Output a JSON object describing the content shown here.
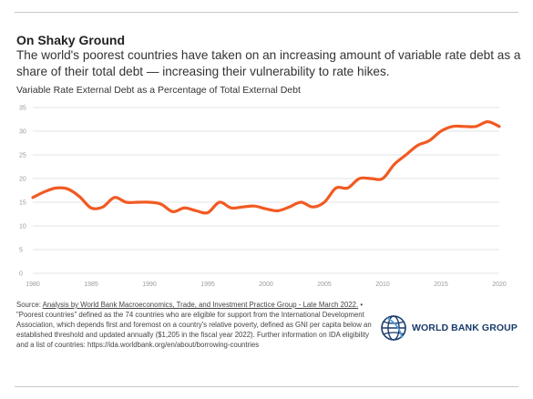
{
  "header": {
    "title": "On Shaky Ground",
    "subtitle": "The world's poorest countries have taken on an increasing amount of variable rate debt as a share of their total debt — increasing their vulnerability to rate hikes.",
    "chart_label": "Variable Rate External Debt as a Percentage of Total External Debt"
  },
  "footer": {
    "source_label": "Source:",
    "source_link": "Analysis by World Bank Macroeconomics, Trade, and Investment Practice Group - Late March 2022.",
    "note": " • \"Poorest countries\" defined as the 74 countries who are eligible for support from the International Development Association, which depends first and foremost on a country's relative poverty, defined as GNI per capita below an established threshold and updated annually ($1,205 in the fiscal year 2022). Further information on IDA eligibility and a list of countries: https://ida.worldbank.org/en/about/borrowing-countries",
    "logo_text": "WORLD BANK GROUP"
  },
  "colors": {
    "line": "#f15a22",
    "grid": "#e3e3e3",
    "logo": "#1a3c6b"
  },
  "chart_data": {
    "type": "line",
    "title": "Variable Rate External Debt as a Percentage of Total External Debt",
    "xlabel": "",
    "ylabel": "",
    "xlim": [
      1980,
      2020
    ],
    "ylim": [
      0,
      35
    ],
    "x_ticks": [
      1980,
      1985,
      1990,
      1995,
      2000,
      2005,
      2010,
      2015,
      2020
    ],
    "y_ticks": [
      0,
      5,
      10,
      15,
      20,
      25,
      30,
      35
    ],
    "grid": true,
    "series": [
      {
        "name": "",
        "x": [
          1980,
          1981,
          1982,
          1983,
          1984,
          1985,
          1986,
          1987,
          1988,
          1989,
          1990,
          1991,
          1992,
          1993,
          1994,
          1995,
          1996,
          1997,
          1998,
          1999,
          2000,
          2001,
          2002,
          2003,
          2004,
          2005,
          2006,
          2007,
          2008,
          2009,
          2010,
          2011,
          2012,
          2013,
          2014,
          2015,
          2016,
          2017,
          2018,
          2019,
          2020
        ],
        "values": [
          16.0,
          17.2,
          18.0,
          17.8,
          16.2,
          13.8,
          14.0,
          16.0,
          15.0,
          15.0,
          15.0,
          14.6,
          13.0,
          13.8,
          13.2,
          12.8,
          15.0,
          13.8,
          14.0,
          14.2,
          13.6,
          13.2,
          14.0,
          15.0,
          14.0,
          15.0,
          18.0,
          18.0,
          20.0,
          20.0,
          20.0,
          23.0,
          25.0,
          27.0,
          28.0,
          30.0,
          31.0,
          31.0,
          31.0,
          32.0,
          31.0
        ]
      }
    ]
  }
}
